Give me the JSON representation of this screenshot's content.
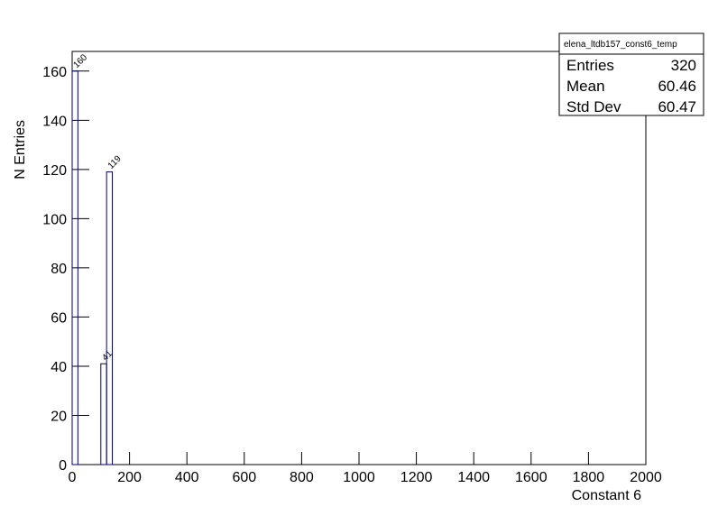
{
  "chart_data": {
    "type": "histogram",
    "x_label": "Constant 6",
    "y_label": "N Entries",
    "bins": [
      0,
      20,
      40,
      60,
      80,
      100,
      120,
      140
    ],
    "values": [
      160,
      0,
      0,
      0,
      0,
      41,
      119
    ],
    "color": "#000080",
    "xlim": [
      0,
      2000
    ],
    "xticks": [
      0,
      200,
      400,
      600,
      800,
      1000,
      1200,
      1400,
      1600,
      1800,
      2000
    ],
    "ylim": [
      0,
      168
    ],
    "yticks": [
      0,
      20,
      40,
      60,
      80,
      100,
      120,
      140,
      160
    ],
    "stats": {
      "title": "elena_ltdb157_const6_temp",
      "rows": [
        [
          "Entries",
          "320"
        ],
        [
          "Mean",
          "60.46"
        ],
        [
          "Std Dev",
          "60.47"
        ]
      ]
    }
  }
}
